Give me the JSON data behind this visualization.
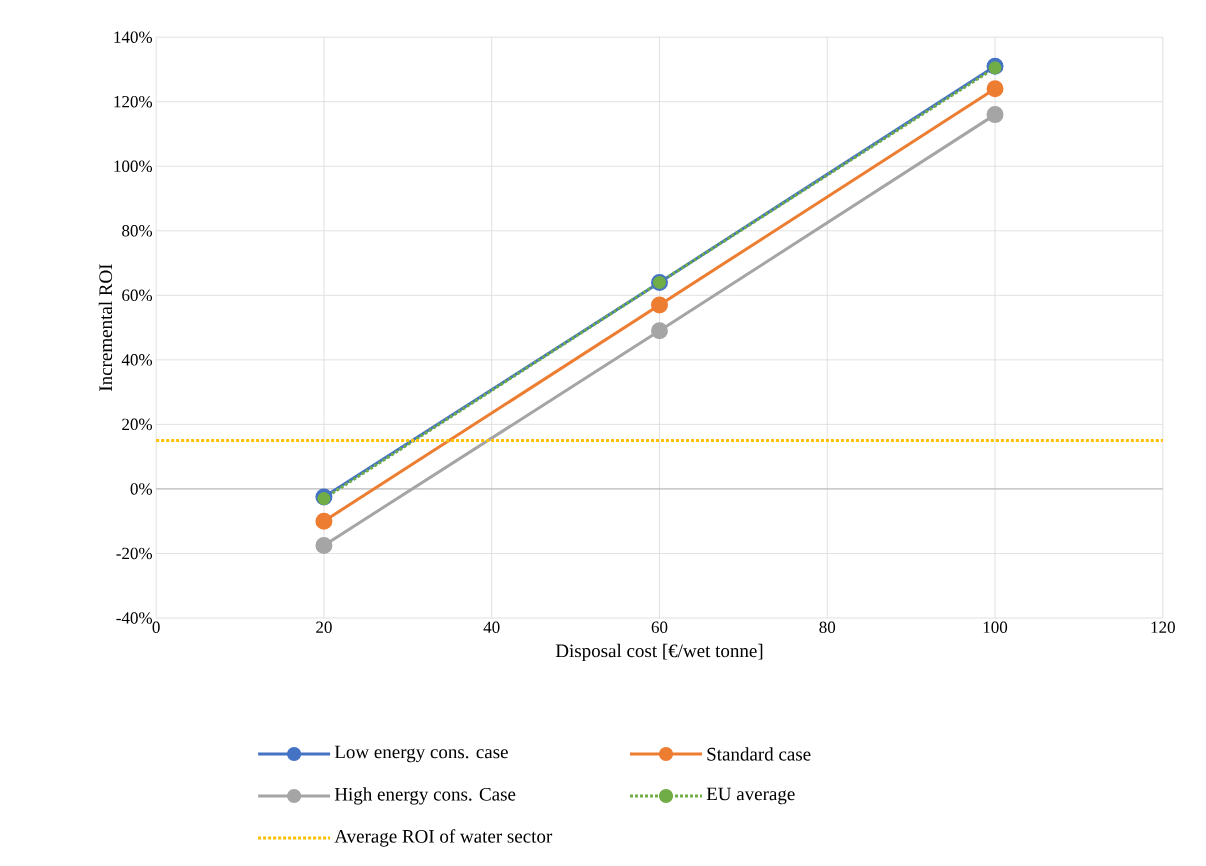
{
  "chart_data": {
    "type": "line",
    "xlabel": "Disposal cost [€/wet tonne]",
    "ylabel": "Incremental ROI",
    "x": [
      20,
      60,
      100
    ],
    "series": [
      {
        "name": "Low energy cons. case",
        "color": "#4472c4",
        "values": [
          -2.5,
          64,
          131
        ]
      },
      {
        "name": "Standard case",
        "color": "#ed7d31",
        "values": [
          -10,
          57,
          124
        ]
      },
      {
        "name": "High energy cons. Case",
        "color": "#a5a5a5",
        "values": [
          -17.5,
          49,
          116
        ]
      },
      {
        "name": "EU average",
        "color": "#70ad47",
        "line_style": "dotted",
        "values": [
          -3,
          64,
          130.5
        ]
      },
      {
        "name": "Average ROI of water sector",
        "color": "#ffc000",
        "line_style": "dotted",
        "marker": "none",
        "x": [
          0,
          120
        ],
        "values": [
          15,
          15
        ]
      }
    ],
    "xlim": [
      0,
      120
    ],
    "xticks": [
      0,
      20,
      40,
      60,
      80,
      100,
      120
    ],
    "ylim": [
      -40,
      140
    ],
    "yticks": [
      {
        "value": -40,
        "label": "-40%"
      },
      {
        "value": -20,
        "label": "-20%"
      },
      {
        "value": 0,
        "label": "0%"
      },
      {
        "value": 20,
        "label": "20%"
      },
      {
        "value": 40,
        "label": "40%"
      },
      {
        "value": 60,
        "label": "60%"
      },
      {
        "value": 80,
        "label": "80%"
      },
      {
        "value": 100,
        "label": "100%"
      },
      {
        "value": 120,
        "label": "120%"
      },
      {
        "value": 140,
        "label": "140%"
      }
    ],
    "grid": true,
    "legend": "bottom",
    "marker": "circle",
    "line_style": "solid"
  }
}
